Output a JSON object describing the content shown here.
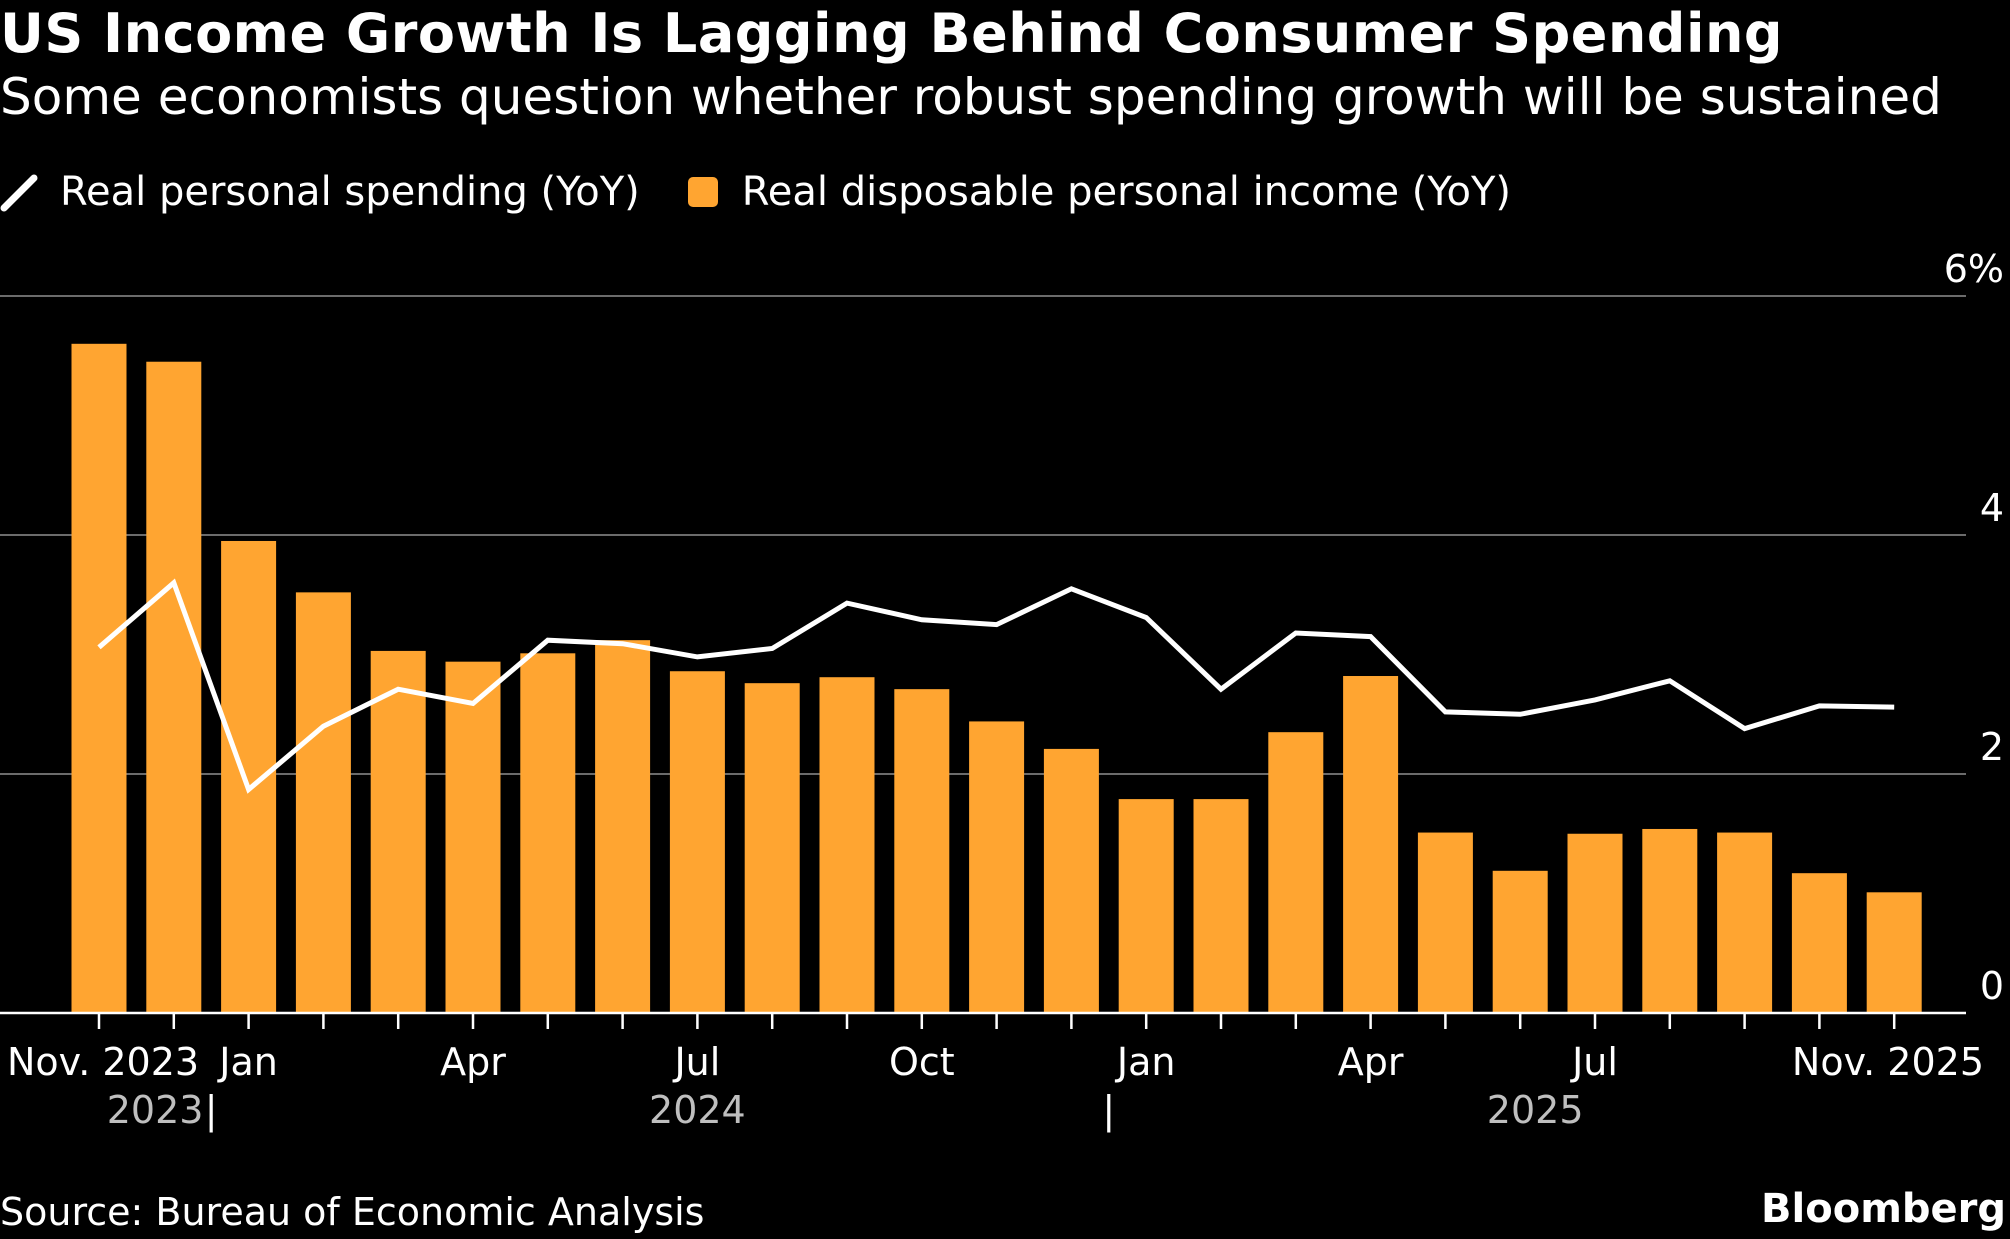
{
  "title": "US Income Growth Is Lagging Behind Consumer Spending",
  "subtitle": "Some economists question whether robust spending growth will be sustained",
  "source": "Source: Bureau of Economic Analysis",
  "brand": "Bloomberg",
  "colors": {
    "background": "#000000",
    "bar": "#FFA531",
    "line": "#FFFFFF",
    "grid": "#6B6B6B",
    "axis_text": "#FFFFFF",
    "year_text": "#BFBFBF"
  },
  "chart_data": {
    "type": "bar",
    "title": "US Income Growth Is Lagging Behind Consumer Spending",
    "subtitle": "Some economists question whether robust spending growth will be sustained",
    "xlabel": "",
    "ylabel": "",
    "ylim": [
      0,
      6
    ],
    "y_ticks": [
      "0",
      "2",
      "4",
      "6%"
    ],
    "y_tick_values": [
      0,
      2,
      4,
      6
    ],
    "grid": true,
    "y_axis_side": "right",
    "legend_position": "top-left",
    "categories": [
      "2023-11",
      "2023-12",
      "2024-01",
      "2024-02",
      "2024-03",
      "2024-04",
      "2024-05",
      "2024-06",
      "2024-07",
      "2024-08",
      "2024-09",
      "2024-10",
      "2024-11",
      "2024-12",
      "2025-01",
      "2025-02",
      "2025-03",
      "2025-04",
      "2025-05",
      "2025-06",
      "2025-07",
      "2025-08",
      "2025-09",
      "2025-10",
      "2025-11"
    ],
    "x_tick_labels": [
      {
        "index": 0,
        "label": "Nov. 2023"
      },
      {
        "index": 2,
        "label": "Jan"
      },
      {
        "index": 5,
        "label": "Apr"
      },
      {
        "index": 8,
        "label": "Jul"
      },
      {
        "index": 11,
        "label": "Oct"
      },
      {
        "index": 14,
        "label": "Jan"
      },
      {
        "index": 17,
        "label": "Apr"
      },
      {
        "index": 20,
        "label": "Jul"
      },
      {
        "index": 24,
        "label": "Nov. 2025"
      }
    ],
    "year_labels": [
      {
        "label": "2023",
        "center_index": 0.75
      },
      {
        "label": "2024",
        "center_index": 8
      },
      {
        "label": "2025",
        "center_index": 19.2
      }
    ],
    "year_separators": [
      "|",
      "|"
    ],
    "year_separator_indices": [
      1.5,
      13.5
    ],
    "series": [
      {
        "name": "Real personal spending (YoY)",
        "type": "line",
        "values": [
          3.06,
          3.6,
          1.87,
          2.4,
          2.71,
          2.59,
          3.12,
          3.09,
          2.98,
          3.05,
          3.43,
          3.29,
          3.25,
          3.55,
          3.31,
          2.71,
          3.18,
          3.15,
          2.52,
          2.5,
          2.62,
          2.78,
          2.38,
          2.57,
          2.56
        ]
      },
      {
        "name": "Real disposable personal income (YoY)",
        "type": "bar",
        "values": [
          5.6,
          5.45,
          3.95,
          3.52,
          3.03,
          2.94,
          3.01,
          3.12,
          2.86,
          2.76,
          2.81,
          2.71,
          2.44,
          2.21,
          1.79,
          1.79,
          2.35,
          2.82,
          1.51,
          1.19,
          1.5,
          1.54,
          1.51,
          1.17,
          1.01
        ]
      }
    ]
  }
}
